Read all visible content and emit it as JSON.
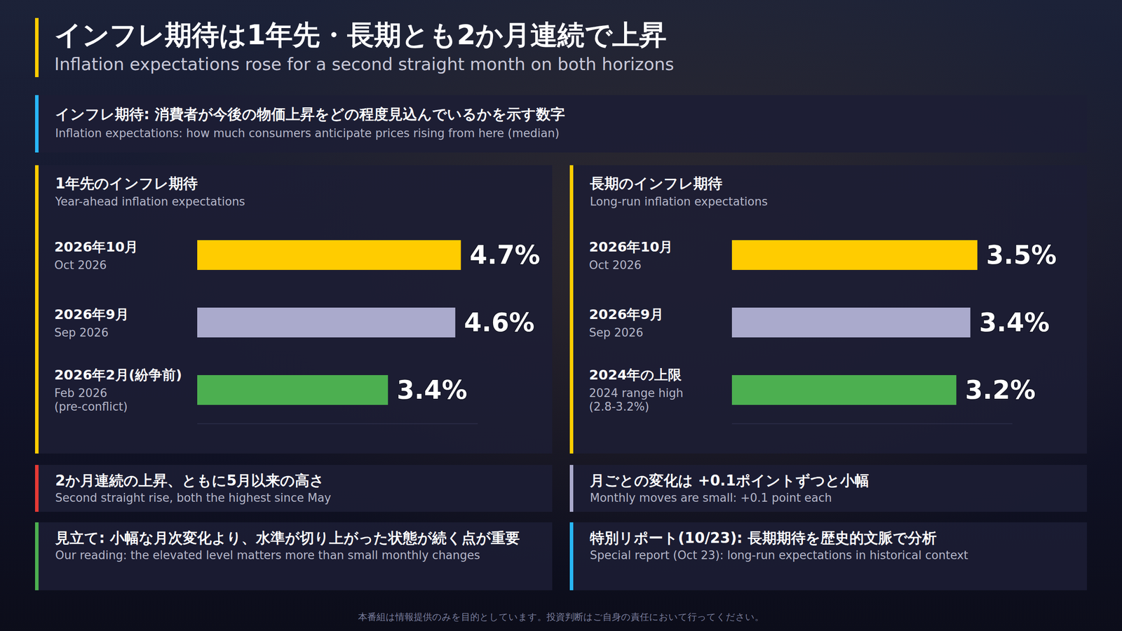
{
  "header": {
    "title": "インフレ期待は1年先・長期とも2か月連続で上昇",
    "subtitle": "Inflation expectations rose for a second straight month on both horizons"
  },
  "definition": {
    "title": "インフレ期待: 消費者が今後の物価上昇をどの程度見込んでいるかを示す数字",
    "subtitle": "Inflation expectations: how much consumers anticipate prices rising from here (median)"
  },
  "chart_data": [
    {
      "type": "bar",
      "title": "1年先のインフレ期待",
      "subtitle": "Year-ahead inflation expectations",
      "categories": [
        "2026年10月",
        "2026年9月",
        "2026年2月(紛争前)"
      ],
      "categories_en": [
        "Oct 2026",
        "Sep 2026",
        "Feb 2026 (pre-conflict)"
      ],
      "values": [
        4.7,
        4.6,
        3.4
      ],
      "value_labels": [
        "4.7%",
        "4.6%",
        "3.4%"
      ],
      "colors": [
        "#ffcc00",
        "#aaaacc",
        "#4caf50"
      ],
      "orientation": "horizontal",
      "data_labels": true,
      "tick_labels": "y",
      "xlim": [
        0,
        5
      ]
    },
    {
      "type": "bar",
      "title": "長期のインフレ期待",
      "subtitle": "Long-run inflation expectations",
      "categories": [
        "2026年10月",
        "2026年9月",
        "2024年の上限"
      ],
      "categories_en": [
        "Oct 2026",
        "Sep 2026",
        "2024 range high (2.8-3.2%)"
      ],
      "values": [
        3.5,
        3.4,
        3.2
      ],
      "value_labels": [
        "3.5%",
        "3.4%",
        "3.2%"
      ],
      "colors": [
        "#ffcc00",
        "#aaaacc",
        "#4caf50"
      ],
      "orientation": "horizontal",
      "data_labels": true,
      "tick_labels": "y",
      "xlim": [
        0,
        4
      ]
    }
  ],
  "notes": [
    {
      "title": "2か月連続の上昇、ともに5月以来の高さ",
      "subtitle": "Second straight rise, both the highest since May"
    },
    {
      "title": "月ごとの変化は +0.1ポイントずつと小幅",
      "subtitle": "Monthly moves are small: +0.1 point each"
    },
    {
      "title": "見立て: 小幅な月次変化より、水準が切り上がった状態が続く点が重要",
      "subtitle": "Our reading: the elevated level matters more than small monthly changes"
    },
    {
      "title": "特別リポート(10/23): 長期期待を歴史的文脈で分析",
      "subtitle": "Special report (Oct 23): long-run expectations in historical context"
    }
  ],
  "disclaimer": "本番組は情報提供のみを目的としています。投資判断はご自身の責任において行ってください。"
}
